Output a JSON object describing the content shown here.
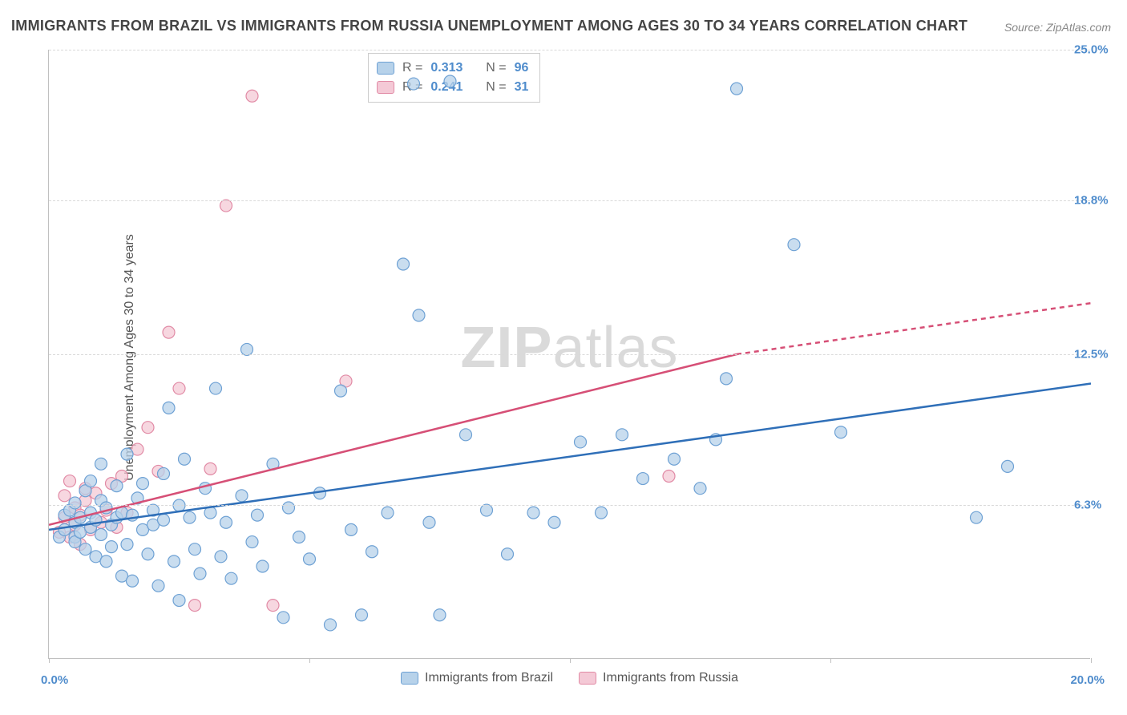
{
  "chart_title": "IMMIGRANTS FROM BRAZIL VS IMMIGRANTS FROM RUSSIA UNEMPLOYMENT AMONG AGES 30 TO 34 YEARS CORRELATION CHART",
  "source_text": "Source: ZipAtlas.com",
  "y_axis_title": "Unemployment Among Ages 30 to 34 years",
  "watermark_text_1": "ZIP",
  "watermark_text_2": "atlas",
  "chart": {
    "type": "scatter",
    "background_color": "#ffffff",
    "grid_color": "#d9d9d9",
    "axis_color": "#c0c0c0",
    "xlim": [
      0,
      20
    ],
    "ylim": [
      0,
      25
    ],
    "x_ticks": [
      0,
      5,
      10,
      15,
      20
    ],
    "x_tick_labels": [
      "0.0%",
      "",
      "",
      "",
      "20.0%"
    ],
    "y_gridlines": [
      6.3,
      12.5,
      18.8,
      25.0
    ],
    "y_tick_labels": [
      "6.3%",
      "12.5%",
      "18.8%",
      "25.0%"
    ],
    "marker_radius": 7.5,
    "marker_stroke_width": 1.2,
    "line_width": 2.5,
    "series": {
      "brazil": {
        "label": "Immigrants from Brazil",
        "fill": "#b7d2ea",
        "stroke": "#6ea1d4",
        "line_color": "#2f6fb8",
        "r_value": "0.313",
        "n_value": "96",
        "trend": {
          "x1": 0,
          "y1": 5.3,
          "x2": 20,
          "y2": 11.3
        },
        "points": [
          [
            0.2,
            5.0
          ],
          [
            0.3,
            5.9
          ],
          [
            0.3,
            5.3
          ],
          [
            0.4,
            6.1
          ],
          [
            0.5,
            5.0
          ],
          [
            0.5,
            5.6
          ],
          [
            0.5,
            6.4
          ],
          [
            0.5,
            4.8
          ],
          [
            0.6,
            5.2
          ],
          [
            0.6,
            5.8
          ],
          [
            0.7,
            4.5
          ],
          [
            0.7,
            6.9
          ],
          [
            0.8,
            6.0
          ],
          [
            0.8,
            5.4
          ],
          [
            0.8,
            7.3
          ],
          [
            0.9,
            4.2
          ],
          [
            0.9,
            5.7
          ],
          [
            1.0,
            6.5
          ],
          [
            1.0,
            5.1
          ],
          [
            1.0,
            8.0
          ],
          [
            1.1,
            4.0
          ],
          [
            1.1,
            6.2
          ],
          [
            1.2,
            5.5
          ],
          [
            1.2,
            4.6
          ],
          [
            1.3,
            7.1
          ],
          [
            1.3,
            5.8
          ],
          [
            1.4,
            3.4
          ],
          [
            1.4,
            6.0
          ],
          [
            1.5,
            8.4
          ],
          [
            1.5,
            4.7
          ],
          [
            1.6,
            5.9
          ],
          [
            1.6,
            3.2
          ],
          [
            1.7,
            6.6
          ],
          [
            1.8,
            5.3
          ],
          [
            1.8,
            7.2
          ],
          [
            1.9,
            4.3
          ],
          [
            2.0,
            6.1
          ],
          [
            2.0,
            5.5
          ],
          [
            2.1,
            3.0
          ],
          [
            2.2,
            7.6
          ],
          [
            2.2,
            5.7
          ],
          [
            2.3,
            10.3
          ],
          [
            2.4,
            4.0
          ],
          [
            2.5,
            6.3
          ],
          [
            2.5,
            2.4
          ],
          [
            2.6,
            8.2
          ],
          [
            2.7,
            5.8
          ],
          [
            2.8,
            4.5
          ],
          [
            2.9,
            3.5
          ],
          [
            3.0,
            7.0
          ],
          [
            3.1,
            6.0
          ],
          [
            3.2,
            11.1
          ],
          [
            3.3,
            4.2
          ],
          [
            3.4,
            5.6
          ],
          [
            3.5,
            3.3
          ],
          [
            3.7,
            6.7
          ],
          [
            3.8,
            12.7
          ],
          [
            3.9,
            4.8
          ],
          [
            4.0,
            5.9
          ],
          [
            4.1,
            3.8
          ],
          [
            4.3,
            8.0
          ],
          [
            4.5,
            1.7
          ],
          [
            4.6,
            6.2
          ],
          [
            4.8,
            5.0
          ],
          [
            5.0,
            4.1
          ],
          [
            5.2,
            6.8
          ],
          [
            5.4,
            1.4
          ],
          [
            5.6,
            11.0
          ],
          [
            5.8,
            5.3
          ],
          [
            6.0,
            1.8
          ],
          [
            6.2,
            4.4
          ],
          [
            6.5,
            6.0
          ],
          [
            6.8,
            16.2
          ],
          [
            7.0,
            23.6
          ],
          [
            7.1,
            14.1
          ],
          [
            7.3,
            5.6
          ],
          [
            7.5,
            1.8
          ],
          [
            7.7,
            23.7
          ],
          [
            8.0,
            9.2
          ],
          [
            8.4,
            6.1
          ],
          [
            8.8,
            4.3
          ],
          [
            9.3,
            6.0
          ],
          [
            9.7,
            5.6
          ],
          [
            10.2,
            8.9
          ],
          [
            10.6,
            6.0
          ],
          [
            11.0,
            9.2
          ],
          [
            11.4,
            7.4
          ],
          [
            12.0,
            8.2
          ],
          [
            12.5,
            7.0
          ],
          [
            13.0,
            11.5
          ],
          [
            13.2,
            23.4
          ],
          [
            14.3,
            17.0
          ],
          [
            15.2,
            9.3
          ],
          [
            17.8,
            5.8
          ],
          [
            18.4,
            7.9
          ],
          [
            12.8,
            9.0
          ]
        ]
      },
      "russia": {
        "label": "Immigrants from Russia",
        "fill": "#f4c9d6",
        "stroke": "#e18aa5",
        "line_color": "#d64f76",
        "r_value": "0.241",
        "n_value": "31",
        "trend": {
          "x1": 0,
          "y1": 5.5,
          "x2": 13.2,
          "y2": 12.5
        },
        "trend_ext": {
          "x1": 13.2,
          "y1": 12.5,
          "x2": 20,
          "y2": 14.6
        },
        "points": [
          [
            0.2,
            5.2
          ],
          [
            0.3,
            5.8
          ],
          [
            0.3,
            6.7
          ],
          [
            0.4,
            5.0
          ],
          [
            0.4,
            7.3
          ],
          [
            0.5,
            5.5
          ],
          [
            0.5,
            6.2
          ],
          [
            0.6,
            5.9
          ],
          [
            0.6,
            4.7
          ],
          [
            0.7,
            6.5
          ],
          [
            0.7,
            7.0
          ],
          [
            0.8,
            5.3
          ],
          [
            0.9,
            6.8
          ],
          [
            1.0,
            5.6
          ],
          [
            1.1,
            6.1
          ],
          [
            1.2,
            7.2
          ],
          [
            1.3,
            5.4
          ],
          [
            1.4,
            7.5
          ],
          [
            1.5,
            6.0
          ],
          [
            1.7,
            8.6
          ],
          [
            1.9,
            9.5
          ],
          [
            2.1,
            7.7
          ],
          [
            2.3,
            13.4
          ],
          [
            2.5,
            11.1
          ],
          [
            2.8,
            2.2
          ],
          [
            3.1,
            7.8
          ],
          [
            3.4,
            18.6
          ],
          [
            3.9,
            23.1
          ],
          [
            4.3,
            2.2
          ],
          [
            5.7,
            11.4
          ],
          [
            11.9,
            7.5
          ]
        ]
      }
    }
  },
  "legend_labels": {
    "r_prefix": "R =",
    "n_prefix": "N ="
  }
}
